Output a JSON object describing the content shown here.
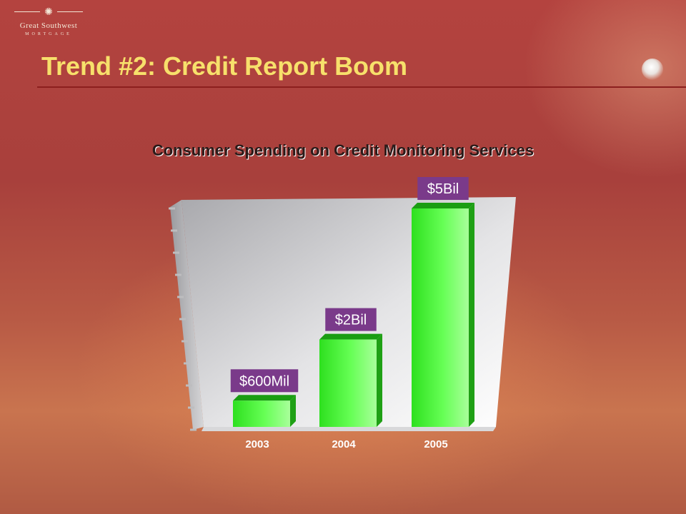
{
  "logo": {
    "name": "Great Southwest",
    "sub": "MORTGAGE"
  },
  "slide_title": "Trend #2: Credit Report Boom",
  "chart_data": {
    "type": "bar",
    "title": "Consumer Spending on Credit Monitoring Services",
    "categories": [
      "2003",
      "2004",
      "2005"
    ],
    "values": [
      0.6,
      2,
      5
    ],
    "data_labels": [
      "$600Mil",
      "$2Bil",
      "$5Bil"
    ],
    "unit": "billion USD",
    "ylim": [
      0,
      5
    ],
    "colors": {
      "bar": "#33ee22",
      "label_box": "#7a3a8a"
    }
  }
}
